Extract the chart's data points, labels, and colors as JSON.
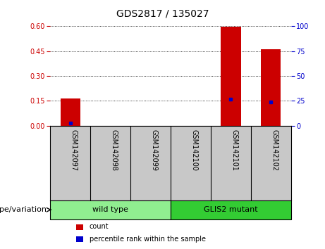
{
  "title": "GDS2817 / 135027",
  "samples": [
    "GSM142097",
    "GSM142098",
    "GSM142099",
    "GSM142100",
    "GSM142101",
    "GSM142102"
  ],
  "count_values": [
    0.165,
    0.0,
    0.0,
    0.0,
    0.595,
    0.462
  ],
  "percentile_values": [
    3.0,
    0.0,
    0.0,
    0.0,
    27.0,
    24.0
  ],
  "ylim_left": [
    0,
    0.6
  ],
  "ylim_right": [
    0,
    100
  ],
  "yticks_left": [
    0,
    0.15,
    0.3,
    0.45,
    0.6
  ],
  "yticks_right": [
    0,
    25,
    50,
    75,
    100
  ],
  "left_tick_color": "#cc0000",
  "right_tick_color": "#0000cc",
  "bar_color": "#cc0000",
  "marker_color": "#0000cc",
  "grid_color": "black",
  "groups": [
    {
      "label": "wild type",
      "indices": [
        0,
        1,
        2
      ],
      "color": "#90ee90"
    },
    {
      "label": "GLIS2 mutant",
      "indices": [
        3,
        4,
        5
      ],
      "color": "#33cc33"
    }
  ],
  "group_label": "genotype/variation",
  "legend_count": "count",
  "legend_percentile": "percentile rank within the sample",
  "bar_width": 0.5,
  "plot_bg": "#ffffff",
  "axes_bg": "#ffffff",
  "tick_area_bg": "#c8c8c8",
  "title_fontsize": 10,
  "tick_fontsize": 7,
  "label_fontsize": 8,
  "sample_fontsize": 7
}
